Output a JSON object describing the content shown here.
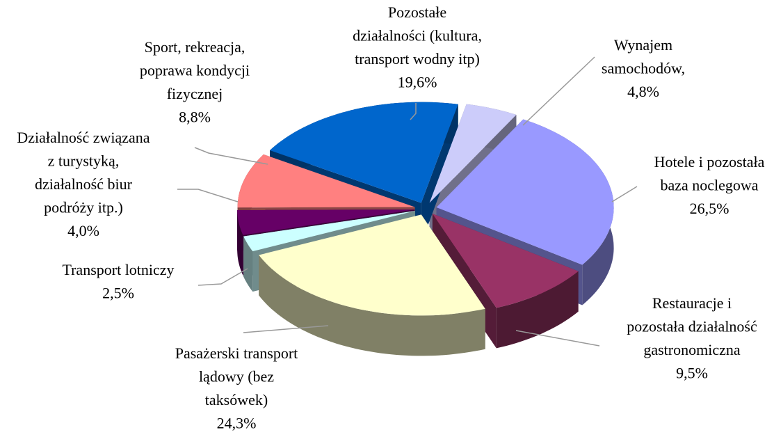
{
  "chart_data": {
    "type": "pie",
    "categories": [
      "Wynajem\nsamochodów,",
      "Hotele i pozostała\nbaza noclegowa",
      "Restauracje i\npozostała działalność\ngastronomiczna",
      "Pasażerski transport\nlądowy (bez\ntaksówek)",
      "Transport lotniczy",
      "Działalność związana\nz turystyką,\ndziałalność biur\npodróży itp.)",
      "Sport, rekreacja,\npoprawa kondycji\nfizycznej",
      "Pozostałe\ndziałalności (kultura,\ntransport wodny itp)"
    ],
    "values": [
      4.8,
      26.5,
      9.5,
      24.3,
      2.5,
      4.0,
      8.8,
      19.6
    ],
    "value_labels": [
      "4,8%",
      "26,5%",
      "9,5%",
      "24,3%",
      "2,5%",
      "4,0%",
      "8,8%",
      "19,6%"
    ],
    "colors": [
      "#ccccfa",
      "#9999ff",
      "#993366",
      "#ffffcc",
      "#ccffff",
      "#660066",
      "#ff8080",
      "#0066cc"
    ]
  }
}
